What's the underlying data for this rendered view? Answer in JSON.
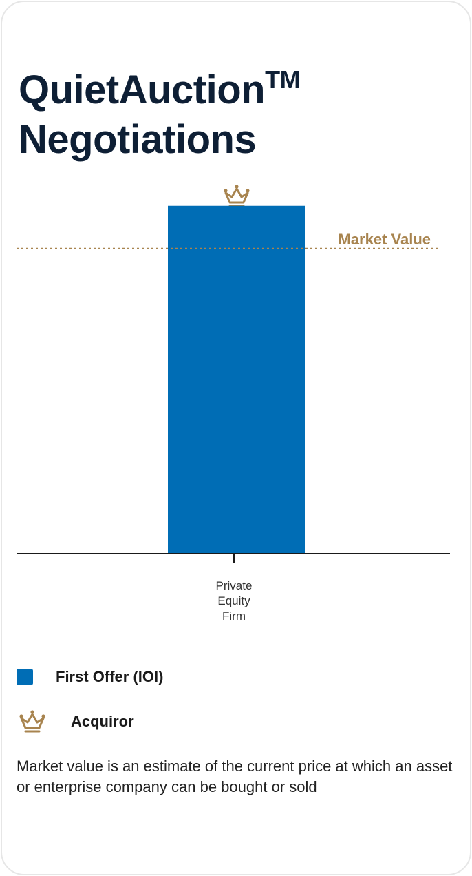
{
  "title": {
    "main": "QuietAuction",
    "mark": "TM",
    "line2": "Negotiations"
  },
  "colors": {
    "bar": "#006DB5",
    "gold": "#A8844F",
    "title": "#0E1F35"
  },
  "chart_data": {
    "type": "bar",
    "categories": [
      "Private Equity Firm"
    ],
    "category_lines": [
      [
        "Private",
        "Equity",
        "Firm"
      ]
    ],
    "series": [
      {
        "name": "First Offer (IOI)",
        "values": [
          1.14
        ]
      }
    ],
    "reference_line": {
      "label": "Market Value",
      "value": 1.0,
      "style": "dotted"
    },
    "winner_marker": {
      "category": "Private Equity Firm",
      "icon": "crown-icon"
    },
    "ylim": [
      0,
      1.25
    ],
    "grid": false,
    "legend_position": "bottom"
  },
  "legend": [
    {
      "label": "First Offer (IOI)",
      "icon": "blue-square"
    },
    {
      "label": "Acquiror",
      "icon": "crown-icon"
    }
  ],
  "footnote": "Market value is an estimate of the current price at which an asset or enterprise company can be bought or sold"
}
